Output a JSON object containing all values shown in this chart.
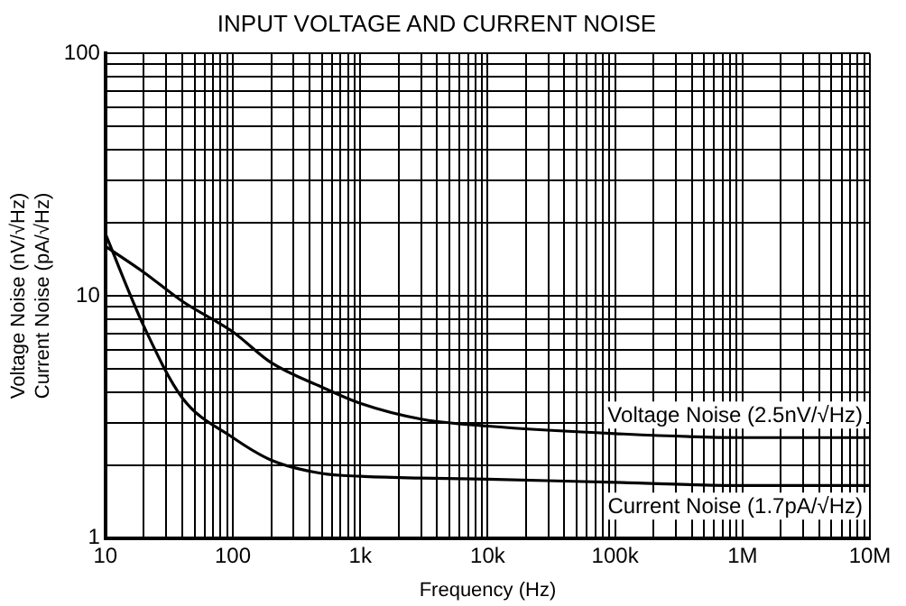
{
  "chart_data": {
    "type": "line",
    "title": "INPUT VOLTAGE AND CURRENT NOISE",
    "xlabel": "Frequency (Hz)",
    "ylabel": "Voltage Noise (nV/√Hz)\nCurrent Noise (pA/√Hz)",
    "log": "xy",
    "grid": true,
    "legend": false,
    "marker": "none",
    "line_style": "solid",
    "xlim": [
      10,
      10000000
    ],
    "ylim": [
      1,
      100
    ],
    "xticks": [
      {
        "value": 10,
        "label": "10"
      },
      {
        "value": 20,
        "label": null
      },
      {
        "value": 30,
        "label": null
      },
      {
        "value": 40,
        "label": null
      },
      {
        "value": 50,
        "label": null
      },
      {
        "value": 60,
        "label": null
      },
      {
        "value": 70,
        "label": null
      },
      {
        "value": 80,
        "label": null
      },
      {
        "value": 90,
        "label": null
      },
      {
        "value": 100,
        "label": "100"
      },
      {
        "value": 200,
        "label": null
      },
      {
        "value": 300,
        "label": null
      },
      {
        "value": 400,
        "label": null
      },
      {
        "value": 500,
        "label": null
      },
      {
        "value": 600,
        "label": null
      },
      {
        "value": 700,
        "label": null
      },
      {
        "value": 800,
        "label": null
      },
      {
        "value": 900,
        "label": null
      },
      {
        "value": 1000,
        "label": "1k"
      },
      {
        "value": 2000,
        "label": null
      },
      {
        "value": 3000,
        "label": null
      },
      {
        "value": 4000,
        "label": null
      },
      {
        "value": 5000,
        "label": null
      },
      {
        "value": 6000,
        "label": null
      },
      {
        "value": 7000,
        "label": null
      },
      {
        "value": 8000,
        "label": null
      },
      {
        "value": 9000,
        "label": null
      },
      {
        "value": 10000,
        "label": "10k"
      },
      {
        "value": 20000,
        "label": null
      },
      {
        "value": 30000,
        "label": null
      },
      {
        "value": 40000,
        "label": null
      },
      {
        "value": 50000,
        "label": null
      },
      {
        "value": 60000,
        "label": null
      },
      {
        "value": 70000,
        "label": null
      },
      {
        "value": 80000,
        "label": null
      },
      {
        "value": 90000,
        "label": null
      },
      {
        "value": 100000,
        "label": "100k"
      },
      {
        "value": 200000,
        "label": null
      },
      {
        "value": 300000,
        "label": null
      },
      {
        "value": 400000,
        "label": null
      },
      {
        "value": 500000,
        "label": null
      },
      {
        "value": 600000,
        "label": null
      },
      {
        "value": 700000,
        "label": null
      },
      {
        "value": 800000,
        "label": null
      },
      {
        "value": 900000,
        "label": null
      },
      {
        "value": 1000000,
        "label": "1M"
      },
      {
        "value": 2000000,
        "label": null
      },
      {
        "value": 3000000,
        "label": null
      },
      {
        "value": 4000000,
        "label": null
      },
      {
        "value": 5000000,
        "label": null
      },
      {
        "value": 6000000,
        "label": null
      },
      {
        "value": 7000000,
        "label": null
      },
      {
        "value": 8000000,
        "label": null
      },
      {
        "value": 9000000,
        "label": null
      },
      {
        "value": 10000000,
        "label": "10M"
      }
    ],
    "yticks": [
      1,
      {
        "value": 2,
        "label": null
      },
      {
        "value": 3,
        "label": null
      },
      {
        "value": 4,
        "label": null
      },
      {
        "value": 5,
        "label": null
      },
      {
        "value": 6,
        "label": null
      },
      {
        "value": 7,
        "label": null
      },
      {
        "value": 8,
        "label": null
      },
      {
        "value": 9,
        "label": null
      },
      10,
      {
        "value": 20,
        "label": null
      },
      {
        "value": 30,
        "label": null
      },
      {
        "value": 40,
        "label": null
      },
      {
        "value": 50,
        "label": null
      },
      {
        "value": 60,
        "label": null
      },
      {
        "value": 70,
        "label": null
      },
      {
        "value": 80,
        "label": null
      },
      {
        "value": 90,
        "label": null
      },
      100
    ],
    "x": [
      10,
      20,
      40,
      100,
      200,
      500,
      1000,
      3000,
      10000,
      100000,
      1000000,
      10000000
    ],
    "series": [
      {
        "name": "Voltage Noise (2.5nV/√Hz)",
        "color": "#000000",
        "values": [
          16,
          12.5,
          9.5,
          7.1,
          5.3,
          4.2,
          3.6,
          3.1,
          2.9,
          2.7,
          2.6,
          2.6
        ]
      },
      {
        "name": "Current Noise (1.7pA/√Hz)",
        "color": "#000000",
        "values": [
          18,
          7.5,
          3.8,
          2.6,
          2.1,
          1.85,
          1.8,
          1.77,
          1.75,
          1.7,
          1.65,
          1.65
        ]
      }
    ]
  }
}
